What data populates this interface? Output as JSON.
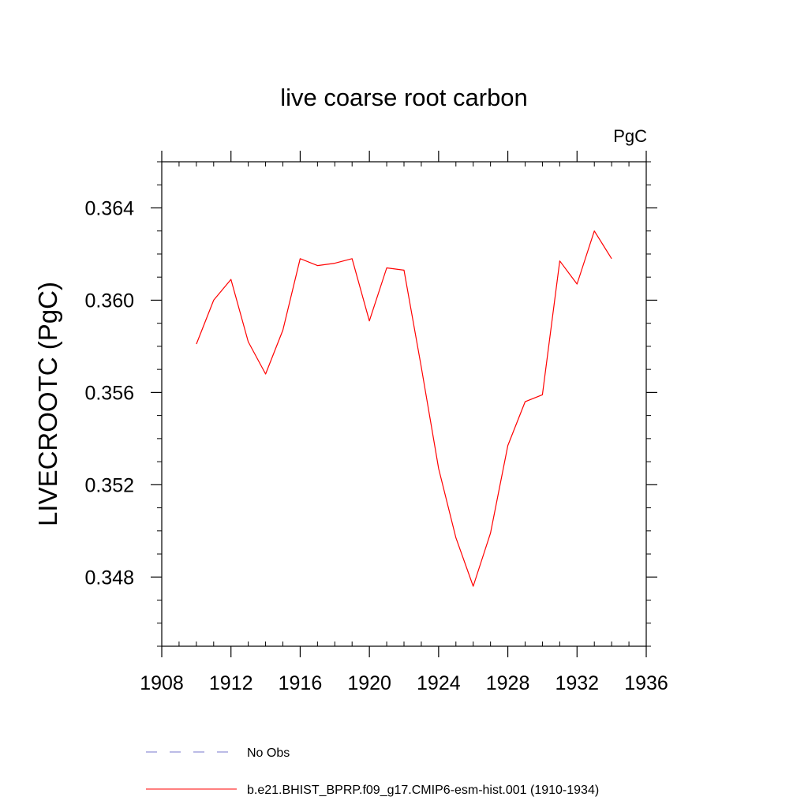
{
  "chart_data": {
    "type": "line",
    "title": "live coarse root carbon",
    "units": "PgC",
    "xlabel": "",
    "ylabel": "LIVECROOTC  (PgC)",
    "xlim": [
      1908,
      1936
    ],
    "ylim": [
      0.345,
      0.366
    ],
    "x_ticks": [
      1908,
      1912,
      1916,
      1920,
      1924,
      1928,
      1932,
      1936
    ],
    "x_tick_labels": [
      "1908",
      "1912",
      "1916",
      "1920",
      "1924",
      "1928",
      "1932",
      "1936"
    ],
    "y_ticks": [
      0.348,
      0.352,
      0.356,
      0.36,
      0.364
    ],
    "y_tick_labels": [
      "0.348",
      "0.352",
      "0.356",
      "0.360",
      "0.364"
    ],
    "grid": false,
    "legend_position": "bottom",
    "series": [
      {
        "name": "b.e21.BHIST_BPRP.f09_g17.CMIP6-esm-hist.001 (1910-1934)",
        "color": "#ff0000",
        "style": "solid",
        "x": [
          1910,
          1911,
          1912,
          1913,
          1914,
          1915,
          1916,
          1917,
          1918,
          1919,
          1920,
          1921,
          1922,
          1923,
          1924,
          1925,
          1926,
          1927,
          1928,
          1929,
          1930,
          1931,
          1932,
          1933,
          1934
        ],
        "y": [
          0.3581,
          0.36,
          0.3609,
          0.3582,
          0.3568,
          0.3587,
          0.3618,
          0.3615,
          0.3616,
          0.3618,
          0.3591,
          0.3614,
          0.3613,
          0.3571,
          0.3527,
          0.3497,
          0.3476,
          0.3499,
          0.3537,
          0.3556,
          0.3559,
          0.3617,
          0.3607,
          0.363,
          0.3618
        ]
      }
    ],
    "legend": [
      {
        "label": "No Obs",
        "color": "#7777cc",
        "style": "dashed"
      },
      {
        "label": "b.e21.BHIST_BPRP.f09_g17.CMIP6-esm-hist.001 (1910-1934)",
        "color": "#ff0000",
        "style": "solid"
      }
    ]
  }
}
